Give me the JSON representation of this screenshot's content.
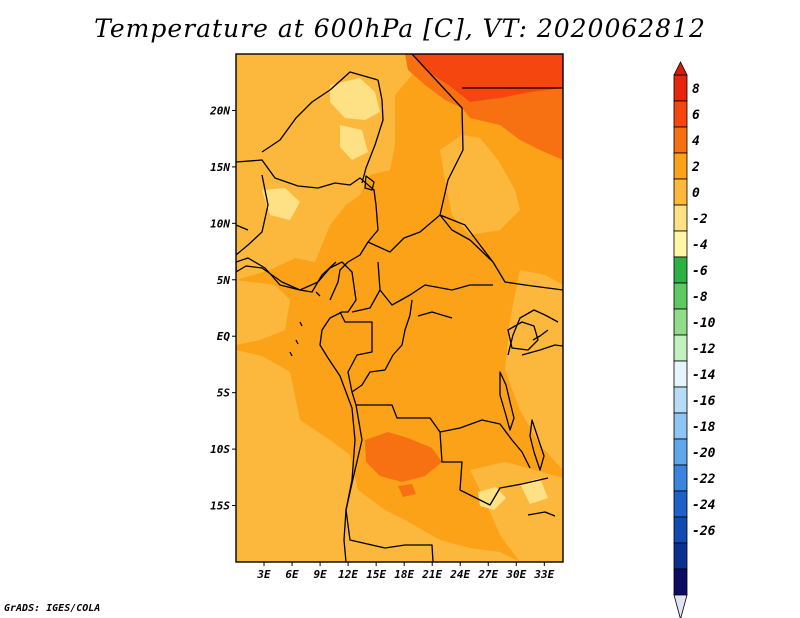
{
  "title": "Temperature at 600hPa [C], VT: 2020062812",
  "credit": "GrADS: IGES/COLA",
  "map": {
    "lon_range": [
      0,
      35
    ],
    "lat_range": [
      -20,
      25
    ],
    "lat_ticks": [
      {
        "label": "20N",
        "lat": 20
      },
      {
        "label": "15N",
        "lat": 15
      },
      {
        "label": "10N",
        "lat": 10
      },
      {
        "label": "5N",
        "lat": 5
      },
      {
        "label": "EQ",
        "lat": 0
      },
      {
        "label": "5S",
        "lat": -5
      },
      {
        "label": "10S",
        "lat": -10
      },
      {
        "label": "15S",
        "lat": -15
      }
    ],
    "lon_ticks": [
      {
        "label": "3E",
        "lon": 3
      },
      {
        "label": "6E",
        "lon": 6
      },
      {
        "label": "9E",
        "lon": 9
      },
      {
        "label": "12E",
        "lon": 12
      },
      {
        "label": "15E",
        "lon": 15
      },
      {
        "label": "18E",
        "lon": 18
      },
      {
        "label": "21E",
        "lon": 21
      },
      {
        "label": "24E",
        "lon": 24
      },
      {
        "label": "27E",
        "lon": 27
      },
      {
        "label": "30E",
        "lon": 30
      },
      {
        "label": "33E",
        "lon": 33
      }
    ],
    "colors": {
      "below_0": "#fee085",
      "0_to_2": "#fcb83c",
      "2_to_4": "#fba219",
      "4_to_6": "#f77011",
      "6_to_8": "#f54610"
    }
  },
  "colorbar": {
    "labels": [
      "8",
      "6",
      "4",
      "2",
      "0",
      "-2",
      "-4",
      "-6",
      "-8",
      "-10",
      "-12",
      "-14",
      "-16",
      "-18",
      "-20",
      "-22",
      "-24",
      "-26"
    ],
    "colors": [
      "#e8250c",
      "#f54610",
      "#f77011",
      "#fba219",
      "#fcb83c",
      "#fee085",
      "#fff6a8",
      "#2fb044",
      "#5dca5f",
      "#90dc87",
      "#c4efc0",
      "#e6f5fb",
      "#b6dcf6",
      "#8ec5f2",
      "#5ea7ea",
      "#3a84de",
      "#1e62c9",
      "#124bb0",
      "#0b3190",
      "#0b0d64"
    ],
    "top_cap_color": "#d51b0a",
    "bottom_cap_color": "#e2e2f6"
  }
}
